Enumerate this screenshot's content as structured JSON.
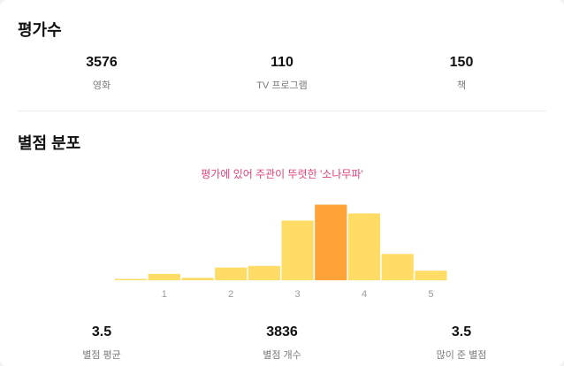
{
  "counts": {
    "title": "평가수",
    "items": [
      {
        "value": "3576",
        "label": "영화"
      },
      {
        "value": "110",
        "label": "TV 프로그램"
      },
      {
        "value": "150",
        "label": "책"
      }
    ]
  },
  "distribution": {
    "title": "별점 분포",
    "caption": "평가에 있어 주관이 뚜렷한 '소나무파'",
    "summary": [
      {
        "value": "3.5",
        "label": "별점 평균"
      },
      {
        "value": "3836",
        "label": "별점 개수"
      },
      {
        "value": "3.5",
        "label": "많이 준 별점"
      }
    ]
  },
  "colors": {
    "bar": "#ffdc66",
    "bar_highlight": "#ffa238",
    "caption": "#e0417a"
  },
  "chart_data": {
    "type": "bar",
    "categories": [
      "0.5",
      "1",
      "1.5",
      "2",
      "2.5",
      "3",
      "3.5",
      "4",
      "4.5",
      "5"
    ],
    "values": [
      1,
      8,
      3,
      16,
      18,
      75,
      95,
      84,
      33,
      12
    ],
    "highlight": "3.5",
    "tick_labels": [
      "1",
      "2",
      "3",
      "4",
      "5"
    ],
    "ylim": [
      0,
      100
    ],
    "grid": false,
    "legend": "none"
  }
}
